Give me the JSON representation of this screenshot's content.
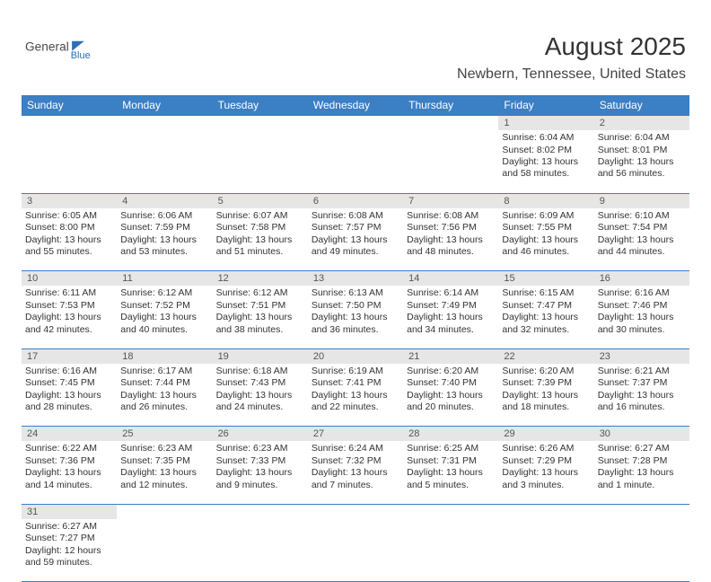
{
  "logo": {
    "text_a": "General",
    "text_b": "Blue",
    "color_a": "#4a4a4a",
    "color_b": "#2f6fb5",
    "sail_color": "#2f6fb5"
  },
  "title": "August 2025",
  "location": "Newbern, Tennessee, United States",
  "header_bg": "#3b7fc4",
  "header_fg": "#ffffff",
  "dayhead_bg": "#e6e6e6",
  "border_color": "#3b7fc4",
  "days": [
    "Sunday",
    "Monday",
    "Tuesday",
    "Wednesday",
    "Thursday",
    "Friday",
    "Saturday"
  ],
  "weeks": [
    [
      null,
      null,
      null,
      null,
      null,
      {
        "n": "1",
        "sunrise": "6:04 AM",
        "sunset": "8:02 PM",
        "dl": "13 hours and 58 minutes."
      },
      {
        "n": "2",
        "sunrise": "6:04 AM",
        "sunset": "8:01 PM",
        "dl": "13 hours and 56 minutes."
      }
    ],
    [
      {
        "n": "3",
        "sunrise": "6:05 AM",
        "sunset": "8:00 PM",
        "dl": "13 hours and 55 minutes."
      },
      {
        "n": "4",
        "sunrise": "6:06 AM",
        "sunset": "7:59 PM",
        "dl": "13 hours and 53 minutes."
      },
      {
        "n": "5",
        "sunrise": "6:07 AM",
        "sunset": "7:58 PM",
        "dl": "13 hours and 51 minutes."
      },
      {
        "n": "6",
        "sunrise": "6:08 AM",
        "sunset": "7:57 PM",
        "dl": "13 hours and 49 minutes."
      },
      {
        "n": "7",
        "sunrise": "6:08 AM",
        "sunset": "7:56 PM",
        "dl": "13 hours and 48 minutes."
      },
      {
        "n": "8",
        "sunrise": "6:09 AM",
        "sunset": "7:55 PM",
        "dl": "13 hours and 46 minutes."
      },
      {
        "n": "9",
        "sunrise": "6:10 AM",
        "sunset": "7:54 PM",
        "dl": "13 hours and 44 minutes."
      }
    ],
    [
      {
        "n": "10",
        "sunrise": "6:11 AM",
        "sunset": "7:53 PM",
        "dl": "13 hours and 42 minutes."
      },
      {
        "n": "11",
        "sunrise": "6:12 AM",
        "sunset": "7:52 PM",
        "dl": "13 hours and 40 minutes."
      },
      {
        "n": "12",
        "sunrise": "6:12 AM",
        "sunset": "7:51 PM",
        "dl": "13 hours and 38 minutes."
      },
      {
        "n": "13",
        "sunrise": "6:13 AM",
        "sunset": "7:50 PM",
        "dl": "13 hours and 36 minutes."
      },
      {
        "n": "14",
        "sunrise": "6:14 AM",
        "sunset": "7:49 PM",
        "dl": "13 hours and 34 minutes."
      },
      {
        "n": "15",
        "sunrise": "6:15 AM",
        "sunset": "7:47 PM",
        "dl": "13 hours and 32 minutes."
      },
      {
        "n": "16",
        "sunrise": "6:16 AM",
        "sunset": "7:46 PM",
        "dl": "13 hours and 30 minutes."
      }
    ],
    [
      {
        "n": "17",
        "sunrise": "6:16 AM",
        "sunset": "7:45 PM",
        "dl": "13 hours and 28 minutes."
      },
      {
        "n": "18",
        "sunrise": "6:17 AM",
        "sunset": "7:44 PM",
        "dl": "13 hours and 26 minutes."
      },
      {
        "n": "19",
        "sunrise": "6:18 AM",
        "sunset": "7:43 PM",
        "dl": "13 hours and 24 minutes."
      },
      {
        "n": "20",
        "sunrise": "6:19 AM",
        "sunset": "7:41 PM",
        "dl": "13 hours and 22 minutes."
      },
      {
        "n": "21",
        "sunrise": "6:20 AM",
        "sunset": "7:40 PM",
        "dl": "13 hours and 20 minutes."
      },
      {
        "n": "22",
        "sunrise": "6:20 AM",
        "sunset": "7:39 PM",
        "dl": "13 hours and 18 minutes."
      },
      {
        "n": "23",
        "sunrise": "6:21 AM",
        "sunset": "7:37 PM",
        "dl": "13 hours and 16 minutes."
      }
    ],
    [
      {
        "n": "24",
        "sunrise": "6:22 AM",
        "sunset": "7:36 PM",
        "dl": "13 hours and 14 minutes."
      },
      {
        "n": "25",
        "sunrise": "6:23 AM",
        "sunset": "7:35 PM",
        "dl": "13 hours and 12 minutes."
      },
      {
        "n": "26",
        "sunrise": "6:23 AM",
        "sunset": "7:33 PM",
        "dl": "13 hours and 9 minutes."
      },
      {
        "n": "27",
        "sunrise": "6:24 AM",
        "sunset": "7:32 PM",
        "dl": "13 hours and 7 minutes."
      },
      {
        "n": "28",
        "sunrise": "6:25 AM",
        "sunset": "7:31 PM",
        "dl": "13 hours and 5 minutes."
      },
      {
        "n": "29",
        "sunrise": "6:26 AM",
        "sunset": "7:29 PM",
        "dl": "13 hours and 3 minutes."
      },
      {
        "n": "30",
        "sunrise": "6:27 AM",
        "sunset": "7:28 PM",
        "dl": "13 hours and 1 minute."
      }
    ],
    [
      {
        "n": "31",
        "sunrise": "6:27 AM",
        "sunset": "7:27 PM",
        "dl": "12 hours and 59 minutes."
      },
      null,
      null,
      null,
      null,
      null,
      null
    ]
  ],
  "labels": {
    "sunrise": "Sunrise:",
    "sunset": "Sunset:",
    "daylight": "Daylight:"
  }
}
